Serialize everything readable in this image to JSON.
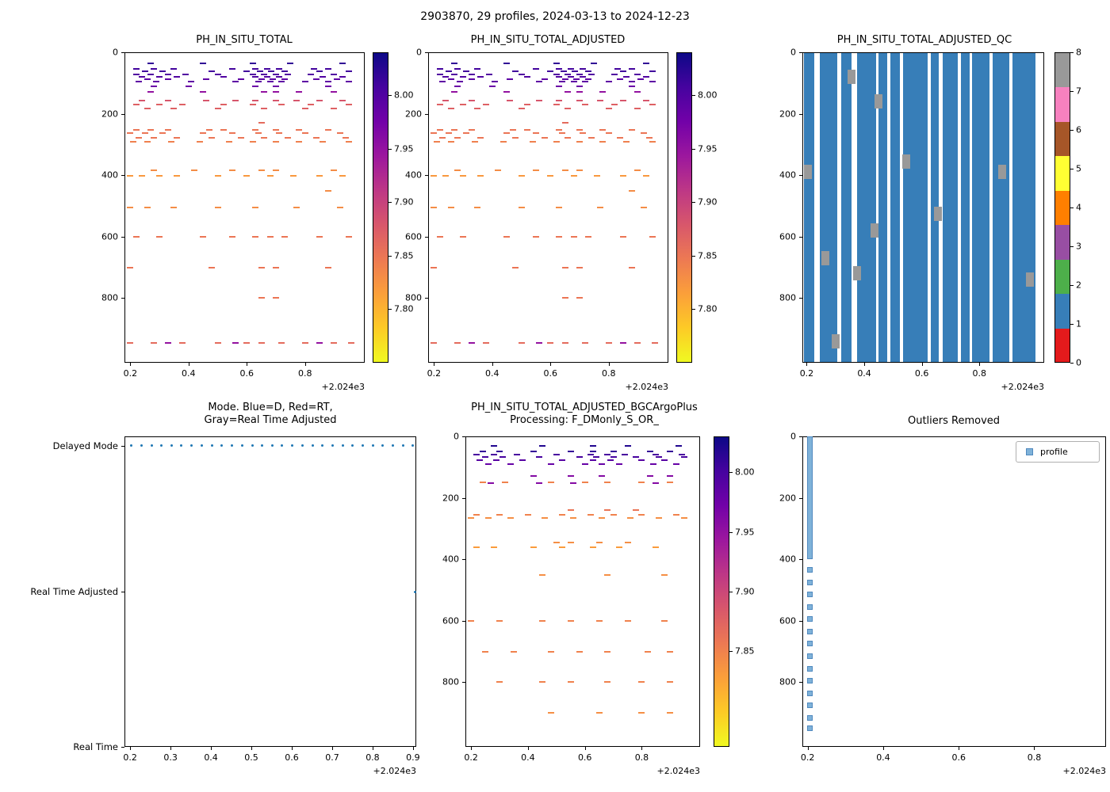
{
  "figure": {
    "title": "2903870, 29 profiles, 2024-03-13 to 2024-12-23"
  },
  "chart_data": [
    {
      "id": "ph_in_situ_total",
      "type": "scatter",
      "render": "ph_scatter",
      "title": "PH_IN_SITU_TOTAL",
      "x_ticks": [
        "0.2",
        "0.4",
        "0.6",
        "0.8"
      ],
      "x_offset": "+2.024e3",
      "xlim": [
        0.18,
        1.005
      ],
      "y_ticks": [
        "0",
        "200",
        "400",
        "600",
        "800"
      ],
      "ylim": [
        0,
        1010
      ],
      "y_axis": "depth (inverted)",
      "colorbar": {
        "colormap": "plasma_r",
        "vmin": 7.75,
        "vmax": 8.04,
        "ticks": [
          "8.00",
          "7.95",
          "7.90",
          "7.85",
          "7.80"
        ]
      },
      "rows": [
        {
          "depth": 35,
          "ph": 8.02,
          "xs": [
            0.27,
            0.45,
            0.62,
            0.75,
            0.93
          ]
        },
        {
          "depth": 55,
          "ph": 8.01,
          "xs": [
            0.22,
            0.28,
            0.35,
            0.55,
            0.63,
            0.67,
            0.71,
            0.83,
            0.88
          ]
        },
        {
          "depth": 63,
          "ph": 8.01,
          "xs": [
            0.25,
            0.31,
            0.48,
            0.6,
            0.645,
            0.685,
            0.73,
            0.85,
            0.95
          ]
        },
        {
          "depth": 72,
          "ph": 8.0,
          "xs": [
            0.22,
            0.27,
            0.33,
            0.39,
            0.5,
            0.62,
            0.66,
            0.7,
            0.74,
            0.82,
            0.9
          ]
        },
        {
          "depth": 80,
          "ph": 8.0,
          "xs": [
            0.24,
            0.3,
            0.36,
            0.52,
            0.63,
            0.67,
            0.71,
            0.86,
            0.93
          ]
        },
        {
          "depth": 88,
          "ph": 7.99,
          "xs": [
            0.26,
            0.33,
            0.46,
            0.58,
            0.65,
            0.69,
            0.73,
            0.84,
            0.91
          ]
        },
        {
          "depth": 96,
          "ph": 7.99,
          "xs": [
            0.23,
            0.29,
            0.41,
            0.56,
            0.64,
            0.68,
            0.72,
            0.8,
            0.88,
            0.95
          ]
        },
        {
          "depth": 110,
          "ph": 7.98,
          "xs": [
            0.28,
            0.4,
            0.63,
            0.7,
            0.88
          ]
        },
        {
          "depth": 130,
          "ph": 7.95,
          "xs": [
            0.27,
            0.45,
            0.66,
            0.7,
            0.78,
            0.9
          ]
        },
        {
          "depth": 158,
          "ph": 7.88,
          "xs": [
            0.24,
            0.33,
            0.46,
            0.56,
            0.63,
            0.7,
            0.77,
            0.85,
            0.93
          ]
        },
        {
          "depth": 170,
          "ph": 7.87,
          "xs": [
            0.22,
            0.3,
            0.38,
            0.52,
            0.62,
            0.72,
            0.82,
            0.95
          ]
        },
        {
          "depth": 182,
          "ph": 7.87,
          "xs": [
            0.26,
            0.35,
            0.5,
            0.66,
            0.8,
            0.9
          ]
        },
        {
          "depth": 230,
          "ph": 7.86,
          "xs": [
            0.65
          ]
        },
        {
          "depth": 252,
          "ph": 7.85,
          "xs": [
            0.22,
            0.27,
            0.33,
            0.47,
            0.52,
            0.63,
            0.7,
            0.78,
            0.88
          ]
        },
        {
          "depth": 263,
          "ph": 7.85,
          "xs": [
            0.2,
            0.25,
            0.31,
            0.45,
            0.55,
            0.64,
            0.71,
            0.8,
            0.92
          ]
        },
        {
          "depth": 278,
          "ph": 7.85,
          "xs": [
            0.23,
            0.28,
            0.36,
            0.48,
            0.58,
            0.66,
            0.74,
            0.84,
            0.94
          ]
        },
        {
          "depth": 292,
          "ph": 7.84,
          "xs": [
            0.21,
            0.26,
            0.34,
            0.44,
            0.54,
            0.62,
            0.7,
            0.78,
            0.86,
            0.95
          ]
        },
        {
          "depth": 385,
          "ph": 7.83,
          "xs": [
            0.28,
            0.42,
            0.55,
            0.65,
            0.7,
            0.9
          ]
        },
        {
          "depth": 402,
          "ph": 7.82,
          "xs": [
            0.2,
            0.24,
            0.3,
            0.36,
            0.5,
            0.6,
            0.68,
            0.76,
            0.85,
            0.93
          ]
        },
        {
          "depth": 450,
          "ph": 7.83,
          "xs": [
            0.88
          ]
        },
        {
          "depth": 505,
          "ph": 7.83,
          "xs": [
            0.2,
            0.26,
            0.35,
            0.5,
            0.63,
            0.77,
            0.92
          ]
        },
        {
          "depth": 600,
          "ph": 7.85,
          "xs": [
            0.22,
            0.3,
            0.45,
            0.55,
            0.63,
            0.68,
            0.73,
            0.85,
            0.95
          ]
        },
        {
          "depth": 700,
          "ph": 7.85,
          "xs": [
            0.2,
            0.48,
            0.65,
            0.7,
            0.88
          ]
        },
        {
          "depth": 800,
          "ph": 7.85,
          "xs": [
            0.65,
            0.7
          ]
        },
        {
          "depth": 945,
          "ph": 7.86,
          "xs": [
            0.2,
            0.28,
            0.38,
            0.5,
            0.6,
            0.65,
            0.72,
            0.8,
            0.9,
            0.96
          ]
        },
        {
          "depth": 945,
          "ph": 7.95,
          "xs": [
            0.33,
            0.56,
            0.85
          ]
        }
      ]
    },
    {
      "id": "ph_in_situ_total_adjusted",
      "type": "scatter",
      "render": "ph_scatter",
      "title": "PH_IN_SITU_TOTAL_ADJUSTED",
      "x_ticks": [
        "0.2",
        "0.4",
        "0.6",
        "0.8"
      ],
      "x_offset": "+2.024e3",
      "xlim": [
        0.18,
        1.005
      ],
      "y_ticks": [
        "0",
        "200",
        "400",
        "600",
        "800"
      ],
      "ylim": [
        0,
        1010
      ],
      "colorbar": {
        "colormap": "plasma_r",
        "vmin": 7.75,
        "vmax": 8.04,
        "ticks": [
          "8.00",
          "7.95",
          "7.90",
          "7.85",
          "7.80"
        ]
      },
      "rows_ref": "ph_in_situ_total"
    },
    {
      "id": "ph_in_situ_total_adjusted_qc",
      "type": "bar",
      "render": "qc_bars",
      "title": "PH_IN_SITU_TOTAL_ADJUSTED_QC",
      "x_ticks": [
        "0.2",
        "0.4",
        "0.6",
        "0.8"
      ],
      "x_offset": "+2.024e3",
      "xlim": [
        0.185,
        1.025
      ],
      "y_ticks": [
        "0",
        "200",
        "400",
        "600",
        "800"
      ],
      "ylim": [
        0,
        1010
      ],
      "colorbar_ticks": [
        "0",
        "1",
        "2",
        "3",
        "4",
        "5",
        "6",
        "7",
        "8"
      ],
      "qc_colors": {
        "0": "#e41a1c",
        "1": "#377eb8",
        "2": "#4daf4a",
        "3": "#984ea3",
        "4": "#ff7f00",
        "5": "#ffff33",
        "6": "#a65628",
        "7": "#f781bf",
        "8": "#999999"
      },
      "bars_qc1": [
        [
          0.19,
          0.225
        ],
        [
          0.245,
          0.305
        ],
        [
          0.32,
          0.355
        ],
        [
          0.375,
          0.44
        ],
        [
          0.45,
          0.48
        ],
        [
          0.49,
          0.525
        ],
        [
          0.535,
          0.62
        ],
        [
          0.63,
          0.66
        ],
        [
          0.672,
          0.725
        ],
        [
          0.735,
          0.765
        ],
        [
          0.775,
          0.835
        ],
        [
          0.845,
          0.905
        ],
        [
          0.915,
          0.995
        ]
      ],
      "patches_qc8": [
        {
          "x": 0.355,
          "depth": 80
        },
        {
          "x": 0.45,
          "depth": 160
        },
        {
          "x": 0.545,
          "depth": 355
        },
        {
          "x": 0.205,
          "depth": 390
        },
        {
          "x": 0.88,
          "depth": 390
        },
        {
          "x": 0.655,
          "depth": 525
        },
        {
          "x": 0.435,
          "depth": 580
        },
        {
          "x": 0.265,
          "depth": 670
        },
        {
          "x": 0.375,
          "depth": 720
        },
        {
          "x": 0.975,
          "depth": 740
        },
        {
          "x": 0.3,
          "depth": 940
        }
      ]
    },
    {
      "id": "mode",
      "type": "scatter",
      "render": "mode_dots",
      "title_lines": [
        "Mode. Blue=D, Red=RT,",
        "Gray=Real Time Adjusted"
      ],
      "x_ticks": [
        "0.2",
        "0.3",
        "0.4",
        "0.5",
        "0.6",
        "0.7",
        "0.8",
        "0.9"
      ],
      "x_offset": "+2.024e3",
      "xlim": [
        0.186,
        0.908
      ],
      "categories": [
        "Delayed Mode",
        "Real Time Adjusted",
        "Real Time"
      ],
      "dot_color": "#1f77b4",
      "delayed_mode_x": [
        0.203,
        0.228,
        0.253,
        0.278,
        0.303,
        0.327,
        0.352,
        0.377,
        0.402,
        0.427,
        0.452,
        0.477,
        0.502,
        0.527,
        0.552,
        0.576,
        0.601,
        0.626,
        0.651,
        0.676,
        0.701,
        0.726,
        0.751,
        0.776,
        0.801,
        0.825,
        0.85,
        0.875,
        0.9
      ],
      "rta_x": [
        0.905
      ]
    },
    {
      "id": "ph_adjusted_bgcargoplus",
      "type": "scatter",
      "render": "ph_scatter",
      "title_lines": [
        "PH_IN_SITU_TOTAL_ADJUSTED_BGCArgoPlus",
        "Processing: F_DMonly_S_OR_"
      ],
      "x_ticks": [
        "0.2",
        "0.4",
        "0.6",
        "0.8"
      ],
      "x_offset": "+2.024e3",
      "xlim": [
        0.18,
        1.005
      ],
      "y_ticks": [
        "0",
        "200",
        "400",
        "600",
        "800"
      ],
      "ylim": [
        0,
        1010
      ],
      "colorbar": {
        "colormap": "plasma_r",
        "vmin": 7.77,
        "vmax": 8.03,
        "ticks": [
          "8.00",
          "7.95",
          "7.90",
          "7.85"
        ]
      },
      "rows": [
        {
          "depth": 30,
          "ph": 8.02,
          "xs": [
            0.28,
            0.45,
            0.63,
            0.75,
            0.93
          ]
        },
        {
          "depth": 48,
          "ph": 8.01,
          "xs": [
            0.24,
            0.3,
            0.42,
            0.55,
            0.63,
            0.7,
            0.83,
            0.9
          ]
        },
        {
          "depth": 58,
          "ph": 8.0,
          "xs": [
            0.22,
            0.28,
            0.36,
            0.5,
            0.62,
            0.68,
            0.74,
            0.85,
            0.94
          ]
        },
        {
          "depth": 68,
          "ph": 8.0,
          "xs": [
            0.25,
            0.31,
            0.44,
            0.58,
            0.64,
            0.7,
            0.78,
            0.86,
            0.95
          ]
        },
        {
          "depth": 78,
          "ph": 7.99,
          "xs": [
            0.23,
            0.29,
            0.38,
            0.52,
            0.63,
            0.69,
            0.8,
            0.88
          ]
        },
        {
          "depth": 90,
          "ph": 7.98,
          "xs": [
            0.26,
            0.34,
            0.48,
            0.6,
            0.66,
            0.72,
            0.84,
            0.92
          ]
        },
        {
          "depth": 130,
          "ph": 7.96,
          "xs": [
            0.42,
            0.55,
            0.66,
            0.83,
            0.9
          ]
        },
        {
          "depth": 150,
          "ph": 7.85,
          "xs": [
            0.24,
            0.32,
            0.48,
            0.6,
            0.68,
            0.8,
            0.9
          ]
        },
        {
          "depth": 152,
          "ph": 7.96,
          "xs": [
            0.27,
            0.44,
            0.56,
            0.85
          ]
        },
        {
          "depth": 240,
          "ph": 7.86,
          "xs": [
            0.55,
            0.68,
            0.78
          ]
        },
        {
          "depth": 255,
          "ph": 7.85,
          "xs": [
            0.22,
            0.3,
            0.4,
            0.52,
            0.62,
            0.7,
            0.8,
            0.92
          ]
        },
        {
          "depth": 265,
          "ph": 7.84,
          "xs": [
            0.2,
            0.26,
            0.34,
            0.46,
            0.56,
            0.66,
            0.76,
            0.86,
            0.95
          ]
        },
        {
          "depth": 345,
          "ph": 7.84,
          "xs": [
            0.5,
            0.55,
            0.65,
            0.75
          ]
        },
        {
          "depth": 360,
          "ph": 7.83,
          "xs": [
            0.22,
            0.28,
            0.42,
            0.52,
            0.63,
            0.72,
            0.85
          ]
        },
        {
          "depth": 450,
          "ph": 7.84,
          "xs": [
            0.45,
            0.68,
            0.88
          ]
        },
        {
          "depth": 600,
          "ph": 7.85,
          "xs": [
            0.2,
            0.3,
            0.45,
            0.55,
            0.65,
            0.75,
            0.88
          ]
        },
        {
          "depth": 700,
          "ph": 7.85,
          "xs": [
            0.25,
            0.35,
            0.48,
            0.58,
            0.68,
            0.82,
            0.9
          ]
        },
        {
          "depth": 800,
          "ph": 7.85,
          "xs": [
            0.3,
            0.45,
            0.55,
            0.68,
            0.8,
            0.9
          ]
        },
        {
          "depth": 900,
          "ph": 7.84,
          "xs": [
            0.48,
            0.65,
            0.8,
            0.9
          ]
        }
      ]
    },
    {
      "id": "outliers_removed",
      "type": "scatter",
      "render": "outlier_profile",
      "title": "Outliers Removed",
      "x_ticks": [
        "0.2",
        "0.4",
        "0.6",
        "0.8"
      ],
      "x_offset": "+2.024e3",
      "xlim": [
        0.186,
        0.99
      ],
      "y_ticks": [
        "0",
        "200",
        "400",
        "600",
        "800"
      ],
      "ylim": [
        0,
        1010
      ],
      "legend": {
        "label": "profile"
      },
      "marker_fill": "#7fb2d9",
      "marker_edge": "#5089bf",
      "profile_x": 0.205,
      "solid_depth_range": [
        0,
        400
      ],
      "square_depths": [
        435,
        475,
        515,
        555,
        595,
        635,
        675,
        715,
        755,
        795,
        835,
        875,
        915,
        950
      ]
    }
  ]
}
